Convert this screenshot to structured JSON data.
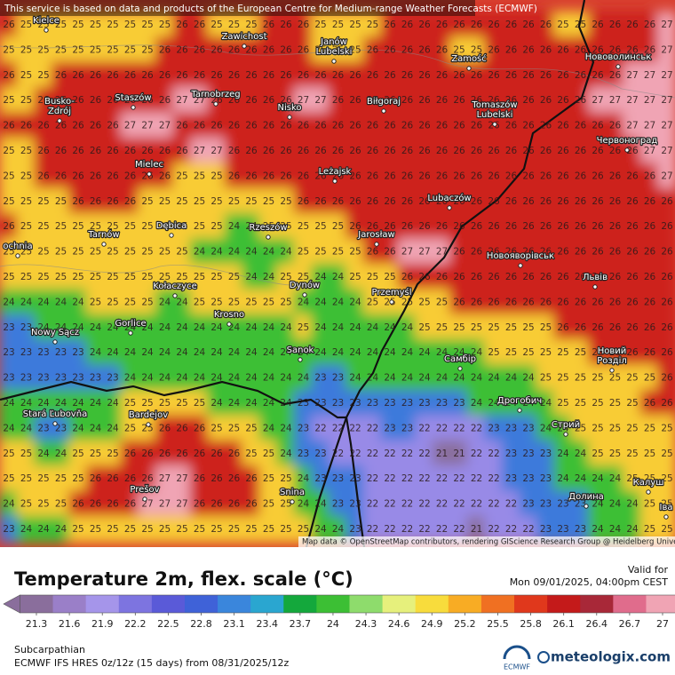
{
  "header": {
    "notice": "This service is based on data and products of the European Centre for Medium-range Weather Forecasts (ECMWF)"
  },
  "map": {
    "attribution": "Map data © OpenStreetMap contributors, rendering GIScience Research Group @ Heidelberg University",
    "cities": [
      [
        "Kielce"
      ],
      [
        "Zawichost"
      ],
      [
        "Janów",
        "Lubelski"
      ],
      [
        "Zamość"
      ],
      [
        "Нововолинськ"
      ],
      [
        "Staszów"
      ],
      [
        "Tarnobrzeg"
      ],
      [
        "Nisko"
      ],
      [
        "Biłgoraj"
      ],
      [
        "Busko-",
        "Zdrój"
      ],
      [
        "Tomaszów",
        "Lubelski"
      ],
      [
        "Червоноград"
      ],
      [
        "Mielec"
      ],
      [
        "Leżajsk"
      ],
      [
        "Lubaczów"
      ],
      [
        "Dębica"
      ],
      [
        "Rzeszów"
      ],
      [
        "Tarnów"
      ],
      [
        "Jarosław"
      ],
      [
        "ochnia"
      ],
      [
        "Новояворівськ"
      ],
      [
        "Львів"
      ],
      [
        "Kołaczyce"
      ],
      [
        "Dynów"
      ],
      [
        "Przemyśl"
      ],
      [
        "Gorlice"
      ],
      [
        "Krosno"
      ],
      [
        "Nowy Sącz"
      ],
      [
        "Sanok"
      ],
      [
        "Самбір"
      ],
      [
        "Новий",
        "Розділ"
      ],
      [
        "Stará Ľubovňa"
      ],
      [
        "Bardejov"
      ],
      [
        "Дрогобич"
      ],
      [
        "Стрий"
      ],
      [
        "Prešov"
      ],
      [
        "Snina"
      ],
      [
        "Калуш"
      ],
      [
        "Долина"
      ],
      [
        "Іва"
      ]
    ],
    "grid": [
      [
        26,
        25,
        25,
        25,
        25,
        25,
        25,
        25,
        25,
        25,
        26,
        26,
        25,
        25,
        25,
        26,
        26,
        26,
        25,
        25,
        25,
        25,
        26,
        26,
        26,
        26,
        26,
        26,
        26,
        26,
        26,
        26,
        25,
        25,
        26,
        26,
        26,
        26,
        27
      ],
      [
        25,
        25,
        25,
        25,
        25,
        25,
        25,
        25,
        25,
        26,
        26,
        26,
        26,
        26,
        26,
        26,
        26,
        26,
        25,
        25,
        25,
        26,
        26,
        26,
        26,
        26,
        25,
        25,
        26,
        26,
        26,
        26,
        26,
        26,
        26,
        26,
        26,
        26,
        27
      ],
      [
        26,
        25,
        25,
        26,
        26,
        26,
        26,
        26,
        26,
        26,
        26,
        26,
        26,
        26,
        26,
        26,
        26,
        26,
        26,
        26,
        26,
        26,
        26,
        26,
        26,
        26,
        26,
        26,
        26,
        26,
        26,
        26,
        26,
        26,
        26,
        26,
        27,
        27,
        27
      ],
      [
        25,
        25,
        26,
        26,
        26,
        26,
        26,
        26,
        26,
        26,
        27,
        27,
        26,
        26,
        26,
        26,
        26,
        27,
        27,
        26,
        26,
        26,
        26,
        26,
        26,
        26,
        26,
        26,
        26,
        26,
        26,
        26,
        26,
        26,
        27,
        27,
        27,
        27,
        27
      ],
      [
        26,
        26,
        26,
        26,
        26,
        26,
        26,
        27,
        27,
        27,
        26,
        26,
        26,
        26,
        26,
        26,
        26,
        26,
        26,
        26,
        26,
        26,
        26,
        26,
        26,
        26,
        26,
        26,
        26,
        26,
        26,
        26,
        26,
        26,
        26,
        26,
        27,
        27,
        27
      ],
      [
        25,
        25,
        26,
        26,
        26,
        26,
        26,
        26,
        26,
        26,
        26,
        27,
        27,
        26,
        26,
        26,
        26,
        26,
        26,
        26,
        26,
        26,
        26,
        26,
        26,
        26,
        26,
        26,
        26,
        26,
        26,
        26,
        26,
        26,
        26,
        26,
        26,
        27,
        27
      ],
      [
        25,
        25,
        26,
        26,
        26,
        26,
        26,
        26,
        26,
        26,
        25,
        25,
        25,
        26,
        26,
        26,
        26,
        26,
        26,
        26,
        26,
        26,
        26,
        26,
        26,
        26,
        26,
        26,
        26,
        26,
        26,
        26,
        26,
        26,
        26,
        26,
        26,
        26,
        27
      ],
      [
        25,
        25,
        25,
        25,
        26,
        26,
        26,
        26,
        25,
        25,
        25,
        25,
        25,
        25,
        25,
        25,
        25,
        26,
        26,
        26,
        26,
        26,
        26,
        26,
        26,
        26,
        26,
        26,
        26,
        26,
        26,
        26,
        26,
        26,
        26,
        26,
        26,
        26,
        26
      ],
      [
        26,
        25,
        25,
        25,
        25,
        25,
        25,
        25,
        25,
        25,
        25,
        25,
        25,
        24,
        24,
        25,
        25,
        25,
        25,
        25,
        26,
        26,
        26,
        26,
        26,
        26,
        26,
        26,
        26,
        26,
        26,
        26,
        26,
        26,
        26,
        26,
        26,
        26,
        26
      ],
      [
        25,
        25,
        25,
        25,
        25,
        25,
        25,
        25,
        25,
        25,
        25,
        24,
        24,
        24,
        24,
        24,
        24,
        25,
        25,
        25,
        25,
        26,
        26,
        27,
        27,
        27,
        26,
        26,
        26,
        26,
        26,
        26,
        26,
        26,
        26,
        26,
        26,
        26,
        26
      ],
      [
        25,
        25,
        25,
        25,
        25,
        25,
        25,
        25,
        25,
        25,
        25,
        25,
        25,
        25,
        24,
        24,
        25,
        25,
        24,
        24,
        25,
        25,
        25,
        26,
        26,
        26,
        26,
        26,
        26,
        26,
        26,
        26,
        26,
        26,
        26,
        26,
        26,
        26,
        26
      ],
      [
        24,
        24,
        24,
        24,
        24,
        25,
        25,
        25,
        25,
        24,
        24,
        25,
        25,
        25,
        25,
        25,
        25,
        24,
        24,
        24,
        24,
        25,
        25,
        25,
        25,
        25,
        26,
        26,
        26,
        26,
        26,
        26,
        26,
        26,
        26,
        26,
        26,
        26,
        26
      ],
      [
        23,
        23,
        24,
        24,
        24,
        24,
        24,
        24,
        24,
        24,
        24,
        24,
        24,
        24,
        24,
        24,
        24,
        25,
        24,
        24,
        24,
        24,
        24,
        24,
        25,
        25,
        25,
        25,
        25,
        25,
        25,
        25,
        26,
        26,
        26,
        26,
        26,
        26,
        26
      ],
      [
        23,
        23,
        23,
        23,
        23,
        24,
        24,
        24,
        24,
        24,
        24,
        24,
        24,
        24,
        24,
        24,
        24,
        24,
        24,
        24,
        24,
        24,
        24,
        24,
        24,
        24,
        24,
        24,
        25,
        25,
        25,
        25,
        25,
        25,
        26,
        26,
        26,
        26,
        26
      ],
      [
        23,
        23,
        23,
        23,
        23,
        23,
        23,
        24,
        24,
        24,
        24,
        24,
        24,
        24,
        24,
        24,
        24,
        24,
        23,
        23,
        24,
        24,
        24,
        24,
        24,
        24,
        24,
        24,
        24,
        24,
        24,
        25,
        25,
        25,
        25,
        25,
        25,
        25,
        26
      ],
      [
        24,
        24,
        24,
        24,
        24,
        24,
        24,
        25,
        25,
        25,
        25,
        25,
        24,
        24,
        24,
        24,
        24,
        23,
        23,
        23,
        23,
        23,
        23,
        23,
        23,
        23,
        23,
        24,
        24,
        24,
        24,
        24,
        25,
        25,
        25,
        25,
        25,
        26,
        26
      ],
      [
        24,
        24,
        23,
        23,
        24,
        24,
        24,
        25,
        25,
        26,
        26,
        26,
        25,
        25,
        25,
        24,
        24,
        23,
        22,
        22,
        22,
        22,
        23,
        23,
        22,
        22,
        22,
        22,
        23,
        23,
        23,
        24,
        24,
        25,
        25,
        25,
        25,
        25,
        25
      ],
      [
        25,
        25,
        24,
        24,
        25,
        25,
        25,
        26,
        26,
        26,
        26,
        26,
        26,
        26,
        25,
        25,
        24,
        23,
        23,
        22,
        22,
        22,
        22,
        22,
        22,
        21,
        21,
        22,
        22,
        23,
        23,
        23,
        24,
        24,
        25,
        25,
        25,
        25,
        25
      ],
      [
        25,
        25,
        25,
        25,
        25,
        26,
        26,
        26,
        26,
        27,
        27,
        26,
        26,
        26,
        26,
        25,
        25,
        24,
        23,
        23,
        23,
        22,
        22,
        22,
        22,
        22,
        22,
        22,
        22,
        23,
        23,
        23,
        24,
        24,
        24,
        24,
        25,
        25,
        25
      ],
      [
        24,
        25,
        25,
        25,
        26,
        26,
        26,
        26,
        27,
        27,
        27,
        26,
        26,
        26,
        26,
        25,
        25,
        24,
        24,
        23,
        23,
        22,
        22,
        22,
        22,
        22,
        22,
        22,
        22,
        22,
        23,
        23,
        23,
        23,
        24,
        24,
        24,
        25,
        25
      ],
      [
        23,
        24,
        24,
        24,
        25,
        25,
        25,
        25,
        25,
        25,
        25,
        25,
        25,
        25,
        25,
        25,
        25,
        25,
        24,
        24,
        23,
        22,
        22,
        22,
        22,
        22,
        22,
        21,
        22,
        22,
        22,
        23,
        23,
        23,
        24,
        24,
        24,
        25,
        25
      ]
    ]
  },
  "legend": {
    "title": "Temperature 2m, flex. scale (°C)",
    "valid_label": "Valid for",
    "valid_time": "Mon 09/01/2025, 04:00pm CEST",
    "ticks": [
      21.3,
      21.6,
      21.9,
      22.2,
      22.5,
      22.8,
      23.1,
      23.4,
      23.7,
      24,
      24.3,
      24.6,
      24.9,
      25.2,
      25.5,
      25.8,
      26.1,
      26.4,
      26.7,
      27
    ],
    "colors": [
      "#8a6e9c",
      "#9a7fc8",
      "#a595ea",
      "#7d74e0",
      "#5a5ad8",
      "#3f62d8",
      "#3a86dc",
      "#2aa6d0",
      "#14a83c",
      "#3cbf34",
      "#8edc6c",
      "#e6f07c",
      "#f8dc3c",
      "#f8ac24",
      "#f07022",
      "#e0381c",
      "#c41a1a",
      "#a82838",
      "#e06c8c",
      "#f0a4b4"
    ]
  },
  "footer": {
    "region": "Subcarpathian",
    "model": "ECMWF IFS HRES 0z/12z (15 days) from 08/31/2025/12z",
    "ecmwf": "ECMWF",
    "brand": "meteologix.com"
  }
}
